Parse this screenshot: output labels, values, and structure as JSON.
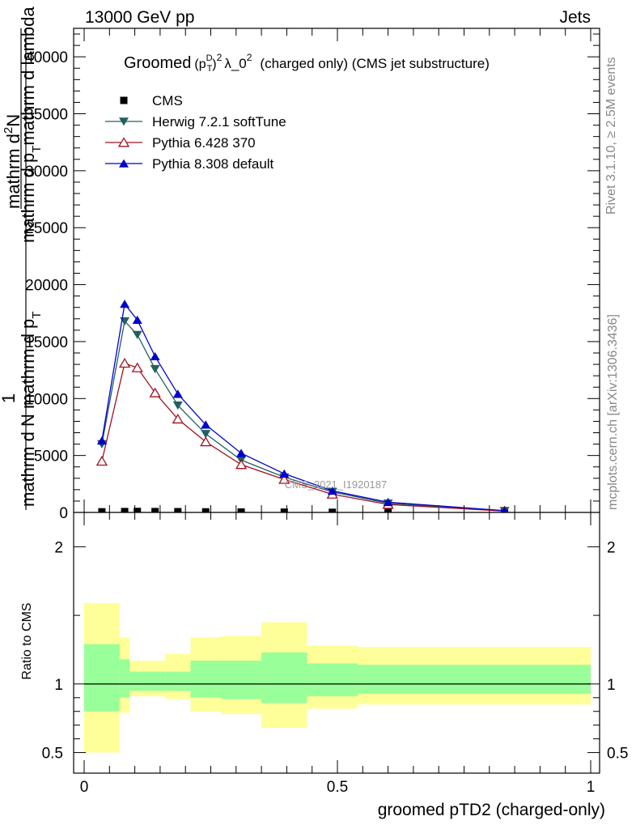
{
  "header": {
    "energy_label": "13000 GeV pp",
    "category_label": "Jets"
  },
  "side": {
    "rivet_label": "Rivet 3.1.10, ≥ 2.5M events",
    "mcplots_label": "mcplots.cern.ch [arXiv:1306.3436]"
  },
  "main_plot": {
    "title_word": "Groomed",
    "title_p": "(p",
    "title_sup_d": "D",
    "title_sub_t": "T",
    "title_close": ")",
    "title_sup_2": "2",
    "title_lambda": "λ_0",
    "title_sup_2b": "2",
    "title_rest": "(charged only) (CMS jet substructure)",
    "ylabel_one": "1",
    "ylabel_denominator": "mathrm d N mathrm d p",
    "ylabel_denominator_sub": "T",
    "ylabel_numerator_top": "mathrm d",
    "ylabel_numerator_sup": "2",
    "ylabel_numerator_n": "N",
    "ylabel_numerator_bottom": "mathrm d p",
    "ylabel_numerator_sub": "T",
    "ylabel_numerator_end": "mathrm d lambda",
    "watermark": "CMS_2021_I1920187"
  },
  "ratio_plot": {
    "ylabel": "Ratio to CMS",
    "xlabel": "groomed pTD2 (charged-only)"
  },
  "legend": [
    {
      "name": "CMS",
      "color": "#000000",
      "marker": "square"
    },
    {
      "name": "Herwig 7.2.1 softTune",
      "color": "#226060",
      "marker": "triangle-down"
    },
    {
      "name": "Pythia 6.428 370",
      "color": "#a01020",
      "marker": "triangle-open"
    },
    {
      "name": "Pythia 8.308 default",
      "color": "#0000cc",
      "marker": "triangle-up"
    }
  ],
  "chart_data": [
    {
      "type": "line",
      "panel": "main",
      "xlim": [
        0,
        1
      ],
      "ylim": [
        0,
        42500
      ],
      "y_ticks": [
        0,
        5000,
        10000,
        15000,
        20000,
        25000,
        30000,
        35000,
        40000
      ],
      "y_tick_labels": [
        "0",
        "5000",
        "10000",
        "15000",
        "20000",
        "25000",
        "30000",
        "35000",
        "40000"
      ],
      "series": [
        {
          "name": "CMS",
          "x": [
            0.035,
            0.08,
            0.105,
            0.14,
            0.185,
            0.24,
            0.31,
            0.395,
            0.49,
            0.6,
            0.83
          ],
          "values": [
            60,
            80,
            90,
            80,
            70,
            55,
            40,
            30,
            15,
            8,
            2
          ]
        },
        {
          "name": "Herwig 7.2.1 softTune",
          "x": [
            0.035,
            0.08,
            0.105,
            0.14,
            0.185,
            0.24,
            0.31,
            0.395,
            0.49,
            0.6,
            0.83
          ],
          "values": [
            6000,
            16800,
            15600,
            12600,
            9400,
            6900,
            4600,
            3100,
            1800,
            800,
            150
          ]
        },
        {
          "name": "Pythia 6.428 370",
          "x": [
            0.035,
            0.08,
            0.105,
            0.14,
            0.185,
            0.24,
            0.31,
            0.395,
            0.49,
            0.6,
            0.83
          ],
          "values": [
            4500,
            13100,
            12700,
            10500,
            8200,
            6200,
            4200,
            2900,
            1600,
            700,
            120
          ]
        },
        {
          "name": "Pythia 8.308 default",
          "x": [
            0.035,
            0.08,
            0.105,
            0.14,
            0.185,
            0.24,
            0.31,
            0.395,
            0.49,
            0.6,
            0.83
          ],
          "values": [
            6300,
            18300,
            16900,
            13700,
            10400,
            7700,
            5200,
            3400,
            1900,
            900,
            160
          ]
        }
      ]
    },
    {
      "type": "area",
      "panel": "ratio",
      "xlim": [
        0,
        1
      ],
      "ylim": [
        0.35,
        2.25
      ],
      "y_ticks": [
        0.5,
        1,
        2
      ],
      "y_tick_labels": [
        "0.5",
        "1",
        "2"
      ],
      "x_ticks": [
        0,
        0.5,
        1
      ],
      "x_tick_labels": [
        "0",
        "0.5",
        "1"
      ],
      "bin_edges": [
        0,
        0.07,
        0.09,
        0.16,
        0.21,
        0.27,
        0.35,
        0.44,
        0.54,
        1.0
      ],
      "band_1sigma_low": [
        0.8,
        0.9,
        0.95,
        0.95,
        0.9,
        0.89,
        0.86,
        0.91,
        0.93
      ],
      "band_1sigma_high": [
        1.29,
        1.18,
        1.09,
        1.09,
        1.17,
        1.17,
        1.23,
        1.15,
        1.14
      ],
      "band_2sigma_low": [
        0.5,
        0.79,
        0.91,
        0.89,
        0.8,
        0.78,
        0.68,
        0.82,
        0.85
      ],
      "band_2sigma_high": [
        1.59,
        1.34,
        1.17,
        1.22,
        1.34,
        1.35,
        1.45,
        1.28,
        1.27
      ],
      "reference_line": 1,
      "band_inner_color": "#99ff99",
      "band_outer_color": "#ffff99"
    }
  ]
}
